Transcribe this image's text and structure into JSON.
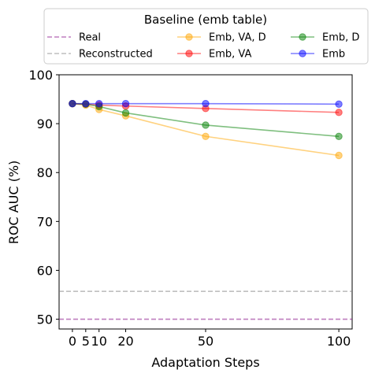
{
  "chart_data": {
    "type": "line",
    "xlabel": "Adaptation Steps",
    "ylabel": "ROC AUC (%)",
    "xlim": [
      -5,
      105
    ],
    "ylim": [
      48,
      100
    ],
    "xticks": [
      0,
      5,
      10,
      20,
      50,
      100
    ],
    "yticks": [
      50,
      60,
      70,
      80,
      90,
      100
    ],
    "grid": false,
    "legend": {
      "title": "Baseline (emb table)",
      "placement": "top, outside plot, 3 columns"
    },
    "x": [
      0,
      5,
      10,
      20,
      50,
      100
    ],
    "series": [
      {
        "name": "Emb, VA, D",
        "color": "#ffa500",
        "values": [
          94.1,
          93.8,
          92.9,
          91.6,
          87.4,
          83.5
        ]
      },
      {
        "name": "Emb, VA",
        "color": "#ff0000",
        "values": [
          94.1,
          94.0,
          93.8,
          93.6,
          93.1,
          92.3
        ]
      },
      {
        "name": "Emb, D",
        "color": "#008000",
        "values": [
          94.1,
          94.0,
          93.5,
          92.2,
          89.7,
          87.4
        ]
      },
      {
        "name": "Emb",
        "color": "#0000ff",
        "values": [
          94.1,
          94.1,
          94.1,
          94.1,
          94.1,
          94.0
        ]
      }
    ],
    "reference_lines": [
      {
        "name": "Real",
        "color": "#800080",
        "value": 50.0
      },
      {
        "name": "Reconstructed",
        "color": "#808080",
        "value": 55.7
      }
    ]
  }
}
